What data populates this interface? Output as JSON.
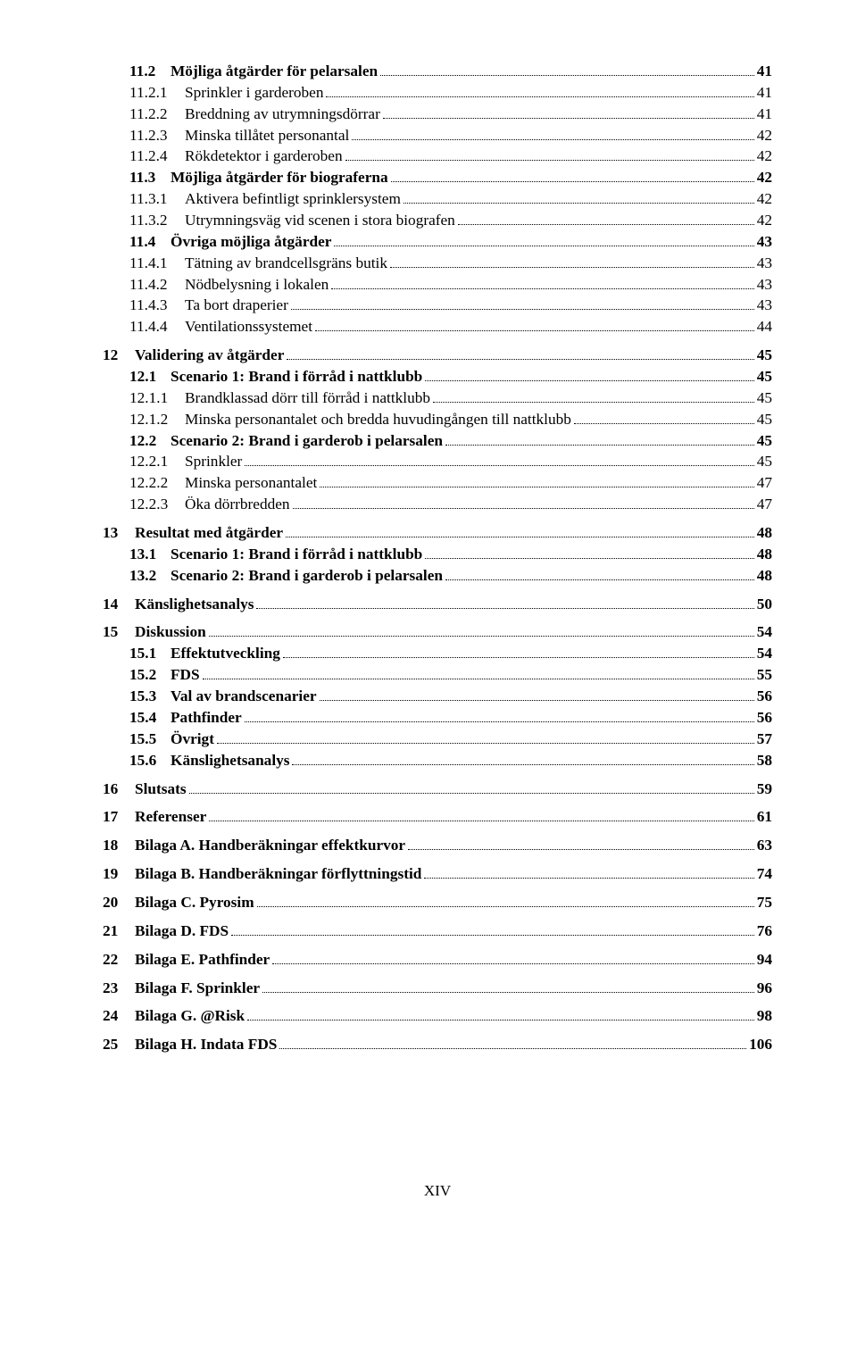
{
  "footer": "XIV",
  "entries": [
    {
      "level": 1,
      "num": "11.2",
      "title": "Möjliga åtgärder för pelarsalen",
      "page": "41"
    },
    {
      "level": 2,
      "num": "11.2.1",
      "title": "Sprinkler i garderoben",
      "page": "41"
    },
    {
      "level": 2,
      "num": "11.2.2",
      "title": "Breddning av utrymningsdörrar",
      "page": "41"
    },
    {
      "level": 2,
      "num": "11.2.3",
      "title": "Minska tillåtet personantal",
      "page": "42"
    },
    {
      "level": 2,
      "num": "11.2.4",
      "title": "Rökdetektor i garderoben",
      "page": "42"
    },
    {
      "level": 1,
      "num": "11.3",
      "title": "Möjliga åtgärder för biograferna",
      "page": "42"
    },
    {
      "level": 2,
      "num": "11.3.1",
      "title": "Aktivera befintligt sprinklersystem",
      "page": "42"
    },
    {
      "level": 2,
      "num": "11.3.2",
      "title": "Utrymningsväg vid scenen i stora biografen",
      "page": "42"
    },
    {
      "level": 1,
      "num": "11.4",
      "title": "Övriga möjliga åtgärder",
      "page": "43"
    },
    {
      "level": 2,
      "num": "11.4.1",
      "title": "Tätning av brandcellsgräns butik",
      "page": "43"
    },
    {
      "level": 2,
      "num": "11.4.2",
      "title": "Nödbelysning i lokalen",
      "page": "43"
    },
    {
      "level": 2,
      "num": "11.4.3",
      "title": "Ta bort draperier",
      "page": "43"
    },
    {
      "level": 2,
      "num": "11.4.4",
      "title": "Ventilationssystemet",
      "page": "44"
    },
    {
      "level": 0,
      "num": "12",
      "title": "Validering av åtgärder",
      "page": "45"
    },
    {
      "level": 1,
      "num": "12.1",
      "title": "Scenario 1: Brand i förråd i nattklubb",
      "page": "45"
    },
    {
      "level": 2,
      "num": "12.1.1",
      "title": "Brandklassad dörr till förråd i nattklubb",
      "page": "45"
    },
    {
      "level": 2,
      "num": "12.1.2",
      "title": "Minska personantalet och bredda huvudingången till nattklubb",
      "page": "45"
    },
    {
      "level": 1,
      "num": "12.2",
      "title": "Scenario 2: Brand i garderob i pelarsalen",
      "page": "45"
    },
    {
      "level": 2,
      "num": "12.2.1",
      "title": "Sprinkler",
      "page": "45"
    },
    {
      "level": 2,
      "num": "12.2.2",
      "title": "Minska personantalet",
      "page": "47"
    },
    {
      "level": 2,
      "num": "12.2.3",
      "title": "Öka dörrbredden",
      "page": "47"
    },
    {
      "level": 0,
      "num": "13",
      "title": "Resultat med åtgärder",
      "page": "48"
    },
    {
      "level": 1,
      "num": "13.1",
      "title": "Scenario 1: Brand i förråd i nattklubb",
      "page": "48"
    },
    {
      "level": 1,
      "num": "13.2",
      "title": "Scenario 2: Brand i garderob i pelarsalen",
      "page": "48"
    },
    {
      "level": 0,
      "num": "14",
      "title": "Känslighetsanalys",
      "page": "50"
    },
    {
      "level": 0,
      "num": "15",
      "title": "Diskussion",
      "page": "54"
    },
    {
      "level": 1,
      "num": "15.1",
      "title": "Effektutveckling",
      "page": "54"
    },
    {
      "level": 1,
      "num": "15.2",
      "title": "FDS",
      "page": "55"
    },
    {
      "level": 1,
      "num": "15.3",
      "title": "Val av brandscenarier",
      "page": "56"
    },
    {
      "level": 1,
      "num": "15.4",
      "title": "Pathfinder",
      "page": "56"
    },
    {
      "level": 1,
      "num": "15.5",
      "title": "Övrigt",
      "page": "57"
    },
    {
      "level": 1,
      "num": "15.6",
      "title": "Känslighetsanalys",
      "page": "58"
    },
    {
      "level": 0,
      "num": "16",
      "title": "Slutsats",
      "page": "59"
    },
    {
      "level": 0,
      "num": "17",
      "title": "Referenser",
      "page": "61"
    },
    {
      "level": 0,
      "num": "18",
      "title": "Bilaga A. Handberäkningar effektkurvor",
      "page": "63"
    },
    {
      "level": 0,
      "num": "19",
      "title": "Bilaga B. Handberäkningar förflyttningstid",
      "page": "74"
    },
    {
      "level": 0,
      "num": "20",
      "title": "Bilaga C. Pyrosim",
      "page": "75"
    },
    {
      "level": 0,
      "num": "21",
      "title": "Bilaga D. FDS",
      "page": "76"
    },
    {
      "level": 0,
      "num": "22",
      "title": "Bilaga E. Pathfinder",
      "page": "94"
    },
    {
      "level": 0,
      "num": "23",
      "title": "Bilaga F. Sprinkler",
      "page": "96"
    },
    {
      "level": 0,
      "num": "24",
      "title": "Bilaga G. @Risk",
      "page": "98"
    },
    {
      "level": 0,
      "num": "25",
      "title": "Bilaga H. Indata FDS",
      "page": "106"
    }
  ]
}
